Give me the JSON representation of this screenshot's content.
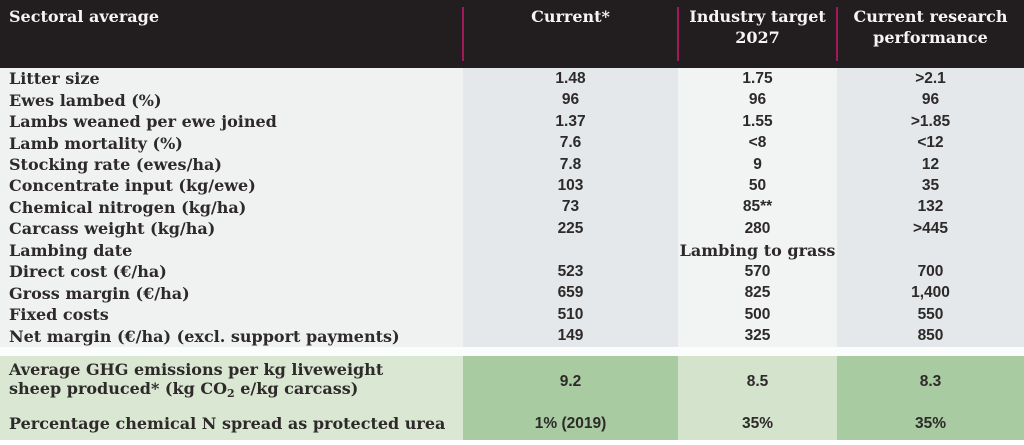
{
  "colors": {
    "header-bg": "#221d1f",
    "header-text": "#f5f4f3",
    "divider": "#a21859",
    "text": "#2d2a29",
    "col-label-bg": "#f0f2f2",
    "col-current-bg": "#e4e8ea",
    "col-target-bg": "#f2f4f4",
    "col-research-bg": "#e4e8ea",
    "gap-bg": "#fbfcfc",
    "green-label-bg": "#d9e7d3",
    "green-dark-bg": "#a9cba1",
    "green-light-bg": "#d4e3cc"
  },
  "header": {
    "row_label": "Sectoral average",
    "col_current": "Current*",
    "col_target": "Industry target 2027",
    "col_research": "Current research performance"
  },
  "rows": [
    {
      "label": "Litter size",
      "current": "1.48",
      "target": "1.75",
      "research": ">2.1"
    },
    {
      "label": "Ewes lambed (%)",
      "current": "96",
      "target": "96",
      "research": "96"
    },
    {
      "label": "Lambs weaned per ewe joined",
      "current": "1.37",
      "target": "1.55",
      "research": ">1.85"
    },
    {
      "label": "Lamb mortality (%)",
      "current": "7.6",
      "target": "<8",
      "research": "<12"
    },
    {
      "label": "Stocking rate (ewes/ha)",
      "current": "7.8",
      "target": "9",
      "research": "12"
    },
    {
      "label": "Concentrate input (kg/ewe)",
      "current": "103",
      "target": "50",
      "research": "35"
    },
    {
      "label": "Chemical nitrogen (kg/ha)",
      "current": "73",
      "target": "85**",
      "research": "132"
    },
    {
      "label": "Carcass weight (kg/ha)",
      "current": "225",
      "target": "280",
      "research": ">445"
    },
    {
      "label": "Lambing date",
      "current": "",
      "target": "Lambing to grass",
      "research": ""
    },
    {
      "label": "Direct cost (€/ha)",
      "current": "523",
      "target": "570",
      "research": "700"
    },
    {
      "label": "Gross margin (€/ha)",
      "current": "659",
      "target": "825",
      "research": "1,400"
    },
    {
      "label": "Fixed costs",
      "current": "510",
      "target": "500",
      "research": "550"
    },
    {
      "label": "Net margin (€/ha) (excl. support payments)",
      "current": "149",
      "target": "325",
      "research": "850"
    }
  ],
  "green_rows": {
    "ghg": {
      "line1": "Average GHG emissions per kg liveweight",
      "line2_pre": "sheep produced* (kg CO",
      "line2_sub": "2",
      "line2_post": " e/kg carcass)",
      "current": "9.2",
      "target": "8.5",
      "research": "8.3"
    },
    "urea": {
      "label": "Percentage chemical N spread as protected urea",
      "current": "1% (2019)",
      "target": "35%",
      "research": "35%"
    }
  }
}
